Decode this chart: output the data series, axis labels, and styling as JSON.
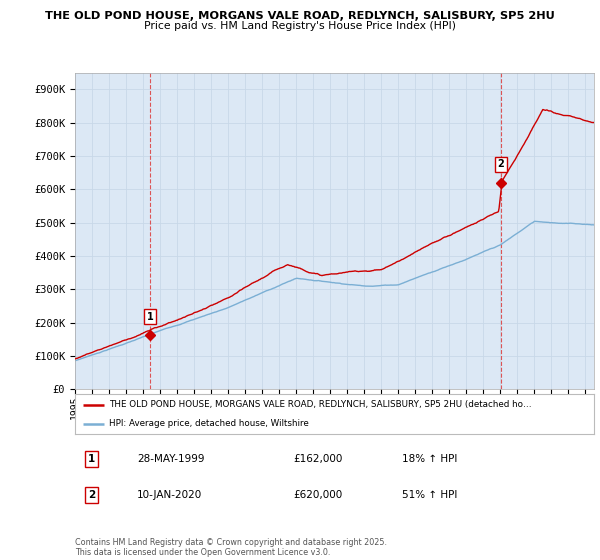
{
  "title_line1": "THE OLD POND HOUSE, MORGANS VALE ROAD, REDLYNCH, SALISBURY, SP5 2HU",
  "title_line2": "Price paid vs. HM Land Registry's House Price Index (HPI)",
  "ylim": [
    0,
    950000
  ],
  "yticks": [
    0,
    100000,
    200000,
    300000,
    400000,
    500000,
    600000,
    700000,
    800000,
    900000
  ],
  "ytick_labels": [
    "£0",
    "£100K",
    "£200K",
    "£300K",
    "£400K",
    "£500K",
    "£600K",
    "£700K",
    "£800K",
    "£900K"
  ],
  "xlim_start": 1995.0,
  "xlim_end": 2025.5,
  "xtick_years": [
    1995,
    1996,
    1997,
    1998,
    1999,
    2000,
    2001,
    2002,
    2003,
    2004,
    2005,
    2006,
    2007,
    2008,
    2009,
    2010,
    2011,
    2012,
    2013,
    2014,
    2015,
    2016,
    2017,
    2018,
    2019,
    2020,
    2021,
    2022,
    2023,
    2024,
    2025
  ],
  "hpi_color": "#7bafd4",
  "price_color": "#cc0000",
  "vline_color": "#dd4444",
  "plot_bg_color": "#dce8f5",
  "marker1_x": 1999.4,
  "marker1_y": 162000,
  "marker2_x": 2020.03,
  "marker2_y": 620000,
  "marker_box_color": "#cc0000",
  "legend_label_price": "THE OLD POND HOUSE, MORGANS VALE ROAD, REDLYNCH, SALISBURY, SP5 2HU (detached ho…",
  "legend_label_hpi": "HPI: Average price, detached house, Wiltshire",
  "annotation1_label": "1",
  "annotation1_date": "28-MAY-1999",
  "annotation1_price": "£162,000",
  "annotation1_hpi": "18% ↑ HPI",
  "annotation2_label": "2",
  "annotation2_date": "10-JAN-2020",
  "annotation2_price": "£620,000",
  "annotation2_hpi": "51% ↑ HPI",
  "footer": "Contains HM Land Registry data © Crown copyright and database right 2025.\nThis data is licensed under the Open Government Licence v3.0.",
  "bg_color": "#ffffff",
  "grid_color": "#c8d8e8"
}
